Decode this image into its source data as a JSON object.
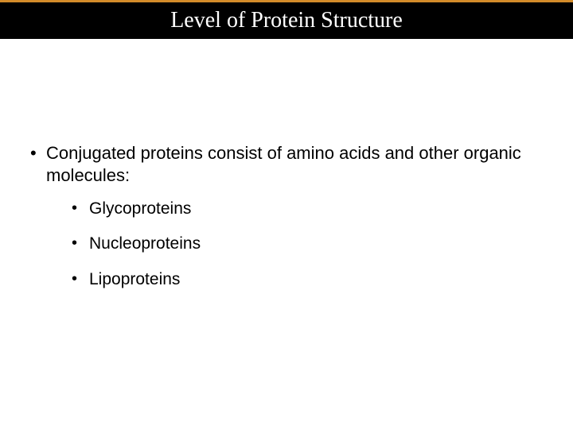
{
  "accent_color": "#d38b2a",
  "title_bar_color": "#000000",
  "background_color": "#ffffff",
  "title": "Level of Protein Structure",
  "title_fontsize": 28,
  "title_color": "#ffffff",
  "body_fontsize": 22,
  "body_color": "#000000",
  "bullets": {
    "main": "Conjugated proteins consist of amino acids and other organic molecules:",
    "subs": [
      "Glycoproteins",
      "Nucleoproteins",
      "Lipoproteins"
    ]
  }
}
